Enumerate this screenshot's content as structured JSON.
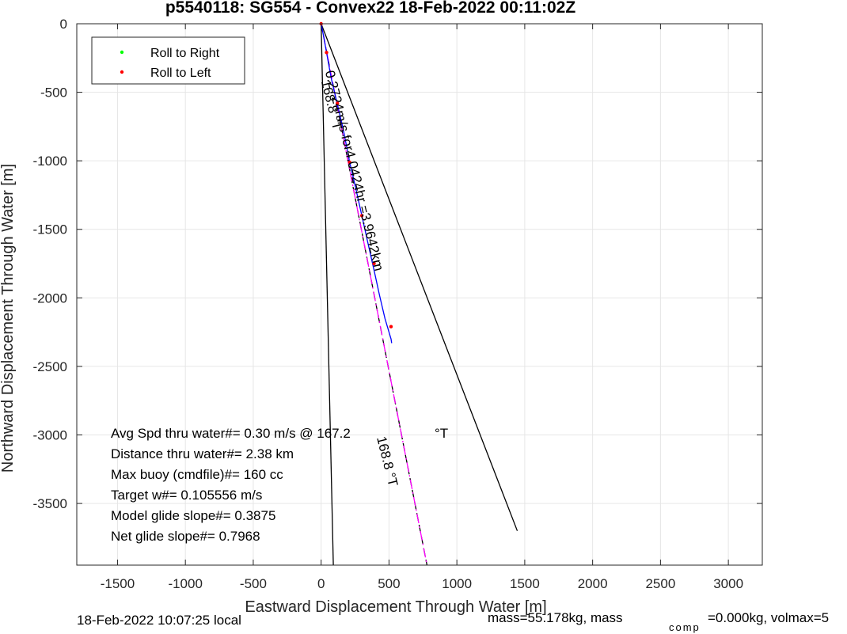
{
  "chart_data": {
    "type": "line",
    "title": "p5540118: SG554 - Convex22 18-Feb-2022 00:11:02Z",
    "xlabel": "Eastward Displacement Through Water [m]",
    "ylabel": "Northward Displacement Through Water [m]",
    "xlim": [
      -1800,
      3250
    ],
    "ylim": [
      -3950,
      0
    ],
    "xticks": [
      -1500,
      -1000,
      -500,
      0,
      500,
      1000,
      1500,
      2000,
      2500,
      3000
    ],
    "yticks": [
      0,
      -500,
      -1000,
      -1500,
      -2000,
      -2500,
      -3000,
      -3500
    ],
    "grid": true,
    "legend": {
      "placement": "top-left",
      "entries": [
        {
          "name": "Roll to Right",
          "color": "#00ff00"
        },
        {
          "name": "Roll to Left",
          "color": "#ff0000"
        }
      ]
    },
    "series": [
      {
        "name": "heading-bound-left",
        "color": "#000000",
        "style": "solid",
        "x": [
          0,
          90
        ],
        "y": [
          0,
          -3950
        ]
      },
      {
        "name": "heading-bound-right",
        "color": "#000000",
        "style": "solid",
        "x": [
          0,
          1445
        ],
        "y": [
          0,
          -3700
        ]
      },
      {
        "name": "average-heading",
        "color": "#000000",
        "style": "dashed",
        "x": [
          0,
          780
        ],
        "y": [
          0,
          -3950
        ]
      },
      {
        "name": "current-heading",
        "color": "#ff00ff",
        "style": "dashdot",
        "x": [
          0,
          780
        ],
        "y": [
          0,
          -3950
        ]
      },
      {
        "name": "track",
        "color": "#0000ff",
        "style": "solid",
        "x": [
          0,
          20,
          40,
          75,
          120,
          165,
          210,
          255,
          300,
          345,
          390,
          430,
          470,
          500,
          515,
          520
        ],
        "y": [
          0,
          -100,
          -210,
          -400,
          -590,
          -780,
          -1010,
          -1200,
          -1400,
          -1600,
          -1800,
          -1980,
          -2150,
          -2250,
          -2300,
          -2330
        ]
      },
      {
        "name": "Roll to Left",
        "color": "#ff0000",
        "style": "points",
        "x": [
          0,
          40,
          120,
          210,
          300,
          390,
          515
        ],
        "y": [
          0,
          -210,
          -580,
          -1010,
          -1400,
          -1750,
          -2210
        ]
      }
    ],
    "annotations": [
      {
        "text": "0.2724m/s for4.0424hr =3.9642km",
        "x": 30,
        "y": -350,
        "rotate": 76
      },
      {
        "text": "168.8 °T",
        "x": 0,
        "y": -420,
        "rotate": 76
      },
      {
        "text": "168.8 °T",
        "x": 410,
        "y": -3020,
        "rotate": 76
      }
    ]
  },
  "info_lines": [
    "Avg Spd thru water#=  0.30 m/s @ 167.2",
    "Distance thru water#=  2.38 km",
    "Max buoy (cmdfile)#= 160 cc",
    "Target w#= 0.105556 m/s",
    "Model glide slope#= 0.3875",
    "Net glide slope#= 0.7968"
  ],
  "info_deg": "°T",
  "footer": {
    "local_time": "18-Feb-2022 10:07:25 local",
    "mass_text": "mass=55.178kg, mass",
    "comp_sub": "comp",
    "volmax_text": "=0.000kg, volmax=5"
  }
}
